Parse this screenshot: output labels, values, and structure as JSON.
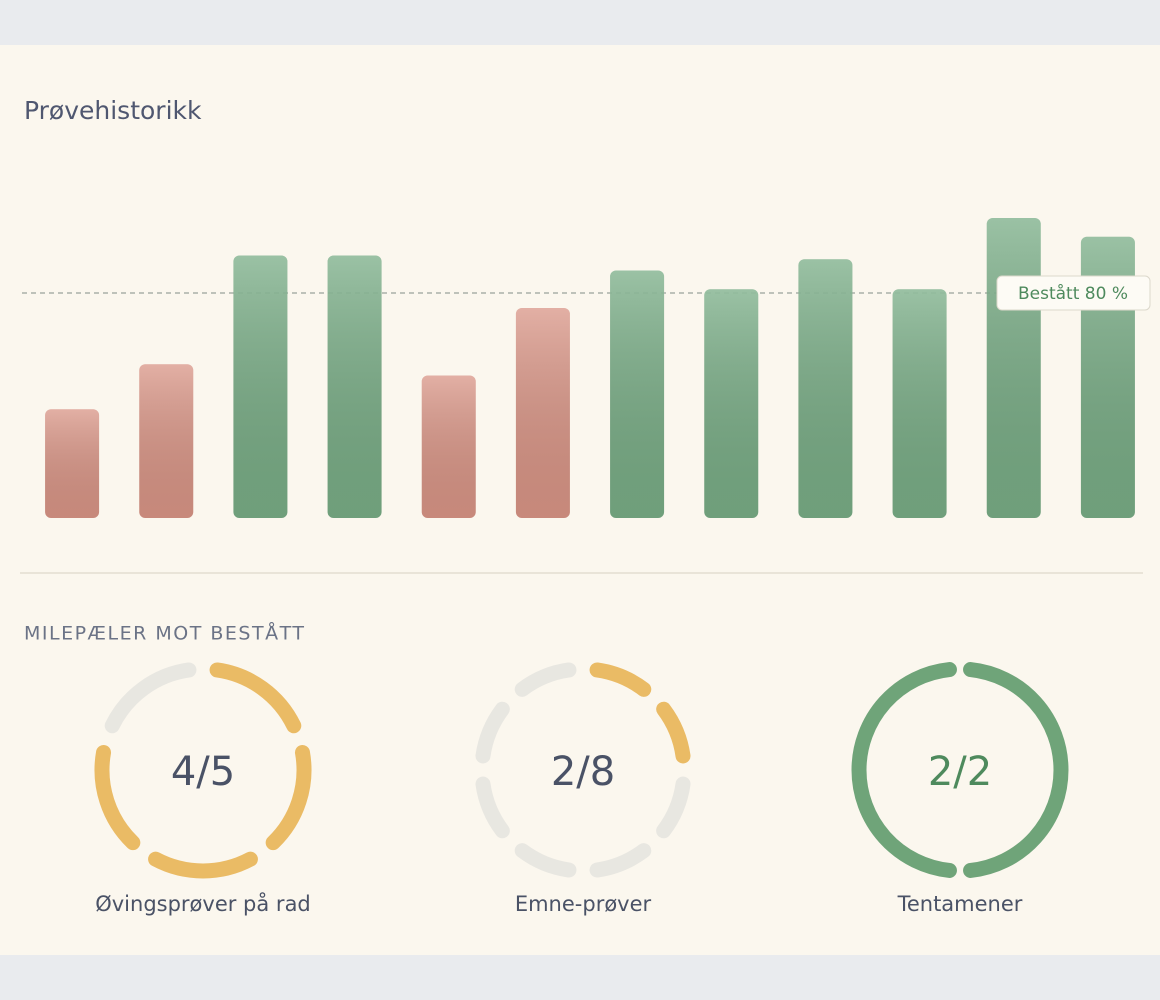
{
  "header": {
    "title": "Prøvehistorikk"
  },
  "chart_data": {
    "type": "bar",
    "values": [
      49,
      61,
      90,
      90,
      58,
      76,
      86,
      81,
      89,
      81,
      100,
      95
    ],
    "ylim": [
      20,
      100
    ],
    "threshold": {
      "value": 80,
      "label": "Bestått 80 %"
    },
    "colors": {
      "pass": "#6aa47a",
      "fail": "#d5897a"
    }
  },
  "milestones": {
    "title": "MILEPÆLER MOT BESTÅTT",
    "items": [
      {
        "value_label": "4/5",
        "done": 4,
        "total": 5,
        "label": "Øvingsprøver på rad",
        "color": "#e8b455",
        "text_color": "#4a5266"
      },
      {
        "value_label": "2/8",
        "done": 2,
        "total": 8,
        "label": "Emne-prøver",
        "color": "#e8b455",
        "text_color": "#4a5266"
      },
      {
        "value_label": "2/2",
        "done": 2,
        "total": 2,
        "label": "Tentamener",
        "color": "#5f9a6c",
        "text_color": "#4e8a5d"
      }
    ]
  }
}
